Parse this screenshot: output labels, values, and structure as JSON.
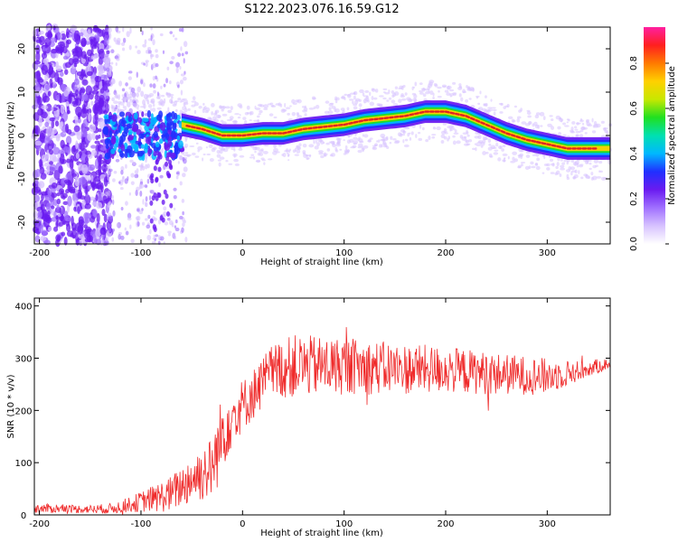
{
  "title": "S122.2023.076.16.59.G12",
  "colors": {
    "snr_line": "#ef2b2b",
    "ridge_core": "#e22222",
    "axis": "#000000"
  },
  "colormap_stops": [
    "#ffffff",
    "#d7c2ff",
    "#a070ff",
    "#6a1bf0",
    "#2030ff",
    "#00b8ff",
    "#00e0b0",
    "#20e020",
    "#c8e800",
    "#ffd000",
    "#ff7a00",
    "#ff1f1f",
    "#ff1fa0"
  ],
  "chart_data": [
    {
      "type": "heatmap",
      "xlabel": "Height of straight line (km)",
      "ylabel": "Frequency (Hz)",
      "xlim": [
        -205,
        362
      ],
      "ylim": [
        -25,
        25
      ],
      "xticks": [
        -200,
        -100,
        0,
        100,
        200,
        300
      ],
      "yticks": [
        -20,
        -10,
        0,
        10,
        20
      ],
      "colorbar": {
        "label": "Normalized spectral amplitude",
        "range": [
          0,
          0.96
        ],
        "ticks": [
          0.0,
          0.2,
          0.4,
          0.6,
          0.8
        ]
      },
      "ridge": {
        "x": [
          -130,
          -100,
          -80,
          -60,
          -40,
          -20,
          0,
          20,
          40,
          60,
          80,
          100,
          120,
          140,
          160,
          180,
          200,
          220,
          240,
          260,
          280,
          300,
          320,
          340,
          360
        ],
        "y": [
          2,
          2.5,
          2.5,
          2.5,
          1.5,
          0,
          0,
          0.5,
          0.5,
          1.5,
          2,
          2.5,
          3.5,
          4,
          4.5,
          5.5,
          5.5,
          4.5,
          2.5,
          0.5,
          -1,
          -2,
          -3,
          -3,
          -3
        ]
      },
      "grid": false
    },
    {
      "type": "line",
      "xlabel": "Height of straight line (km)",
      "ylabel": "SNR (10 * v/v)",
      "xlim": [
        -205,
        362
      ],
      "ylim": [
        0,
        415
      ],
      "xticks": [
        -200,
        -100,
        0,
        100,
        200,
        300
      ],
      "yticks": [
        0,
        100,
        200,
        300,
        400
      ],
      "envelope": {
        "x": [
          -205,
          -180,
          -150,
          -130,
          -110,
          -90,
          -70,
          -60,
          -50,
          -40,
          -30,
          -25,
          -20,
          -15,
          -10,
          -5,
          0,
          10,
          20,
          30,
          50,
          100,
          150,
          200,
          250,
          300,
          330,
          362
        ],
        "mean": [
          12,
          12,
          11,
          12,
          20,
          30,
          40,
          55,
          70,
          80,
          90,
          120,
          155,
          180,
          190,
          200,
          210,
          230,
          255,
          275,
          285,
          285,
          280,
          278,
          270,
          265,
          275,
          290
        ],
        "spread": [
          10,
          8,
          8,
          10,
          15,
          25,
          35,
          40,
          50,
          55,
          60,
          70,
          80,
          70,
          60,
          55,
          50,
          50,
          50,
          55,
          60,
          55,
          50,
          45,
          40,
          35,
          20,
          10
        ]
      },
      "grid": false
    }
  ]
}
